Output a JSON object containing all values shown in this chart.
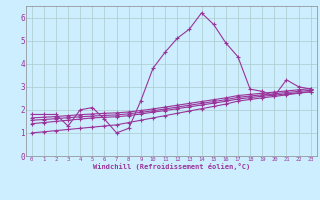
{
  "xlabel": "Windchill (Refroidissement éolien,°C)",
  "bg_color": "#cceeff",
  "grid_color": "#aacccc",
  "line_color": "#993399",
  "xlim": [
    -0.5,
    23.5
  ],
  "ylim": [
    0,
    6.5
  ],
  "xticks": [
    0,
    1,
    2,
    3,
    4,
    5,
    6,
    7,
    8,
    9,
    10,
    11,
    12,
    13,
    14,
    15,
    16,
    17,
    18,
    19,
    20,
    21,
    22,
    23
  ],
  "yticks": [
    0,
    1,
    2,
    3,
    4,
    5,
    6
  ],
  "line1_x": [
    0,
    1,
    2,
    3,
    4,
    5,
    6,
    7,
    8,
    9,
    10,
    11,
    12,
    13,
    14,
    15,
    16,
    17,
    18,
    19,
    20,
    21,
    22,
    23
  ],
  "line1_y": [
    1.8,
    1.8,
    1.8,
    1.3,
    2.0,
    2.1,
    1.6,
    1.0,
    1.2,
    2.4,
    3.8,
    4.5,
    5.1,
    5.5,
    6.2,
    5.7,
    4.9,
    4.3,
    2.9,
    2.8,
    2.6,
    3.3,
    3.0,
    2.9
  ],
  "line2_x": [
    0,
    1,
    2,
    3,
    4,
    5,
    6,
    7,
    8,
    9,
    10,
    11,
    12,
    13,
    14,
    15,
    16,
    17,
    18,
    19,
    20,
    21,
    22,
    23
  ],
  "line2_y": [
    1.0,
    1.05,
    1.1,
    1.15,
    1.2,
    1.25,
    1.3,
    1.35,
    1.45,
    1.55,
    1.65,
    1.75,
    1.85,
    1.95,
    2.05,
    2.15,
    2.25,
    2.38,
    2.45,
    2.52,
    2.58,
    2.65,
    2.72,
    2.78
  ],
  "line3_x": [
    0,
    1,
    2,
    3,
    4,
    5,
    6,
    7,
    8,
    9,
    10,
    11,
    12,
    13,
    14,
    15,
    16,
    17,
    18,
    19,
    20,
    21,
    22,
    23
  ],
  "line3_y": [
    1.4,
    1.45,
    1.5,
    1.55,
    1.6,
    1.65,
    1.68,
    1.7,
    1.75,
    1.82,
    1.9,
    1.97,
    2.05,
    2.13,
    2.21,
    2.29,
    2.37,
    2.47,
    2.53,
    2.59,
    2.64,
    2.69,
    2.74,
    2.79
  ],
  "line4_x": [
    0,
    1,
    2,
    3,
    4,
    5,
    6,
    7,
    8,
    9,
    10,
    11,
    12,
    13,
    14,
    15,
    16,
    17,
    18,
    19,
    20,
    21,
    22,
    23
  ],
  "line4_y": [
    1.55,
    1.58,
    1.62,
    1.66,
    1.7,
    1.73,
    1.76,
    1.78,
    1.83,
    1.89,
    1.96,
    2.04,
    2.12,
    2.2,
    2.28,
    2.36,
    2.44,
    2.54,
    2.6,
    2.65,
    2.7,
    2.75,
    2.8,
    2.85
  ],
  "line5_x": [
    0,
    1,
    2,
    3,
    4,
    5,
    6,
    7,
    8,
    9,
    10,
    11,
    12,
    13,
    14,
    15,
    16,
    17,
    18,
    19,
    20,
    21,
    22,
    23
  ],
  "line5_y": [
    1.65,
    1.68,
    1.71,
    1.75,
    1.79,
    1.82,
    1.85,
    1.87,
    1.91,
    1.97,
    2.04,
    2.12,
    2.2,
    2.28,
    2.36,
    2.44,
    2.52,
    2.62,
    2.67,
    2.72,
    2.77,
    2.82,
    2.87,
    2.92
  ]
}
